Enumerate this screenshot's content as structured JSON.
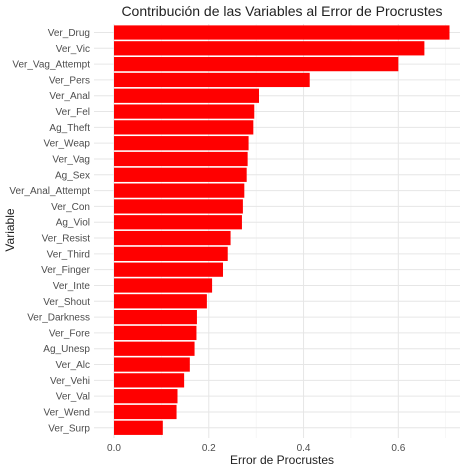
{
  "chart_data": {
    "type": "bar",
    "orientation": "horizontal",
    "title": "Contribución de las Variables al Error de Procrustes",
    "xlabel": "Error de Procrustes",
    "ylabel": "Variable",
    "bar_color": "#ff0000",
    "grid": true,
    "xlim": [
      0,
      0.72
    ],
    "xticks": [
      0.0,
      0.2,
      0.4,
      0.6
    ],
    "xtick_labels": [
      "0.0",
      "0.2",
      "0.4",
      "0.6"
    ],
    "categories": [
      "Ver_Drug",
      "Ver_Vic",
      "Ver_Vag_Attempt",
      "Ver_Pers",
      "Ver_Anal",
      "Ver_Fel",
      "Ag_Theft",
      "Ver_Weap",
      "Ver_Vag",
      "Ag_Sex",
      "Ver_Anal_Attempt",
      "Ver_Con",
      "Ag_Viol",
      "Ver_Resist",
      "Ver_Third",
      "Ver_Finger",
      "Ver_Inte",
      "Ver_Shout",
      "Ver_Darkness",
      "Ver_Fore",
      "Ag_Unesp",
      "Ver_Alc",
      "Ver_Vehi",
      "Ver_Val",
      "Ver_Wend",
      "Ver_Surp"
    ],
    "values": [
      0.708,
      0.655,
      0.6,
      0.413,
      0.306,
      0.296,
      0.294,
      0.284,
      0.282,
      0.28,
      0.275,
      0.272,
      0.27,
      0.246,
      0.24,
      0.23,
      0.207,
      0.196,
      0.175,
      0.174,
      0.17,
      0.16,
      0.148,
      0.134,
      0.132,
      0.103
    ]
  }
}
